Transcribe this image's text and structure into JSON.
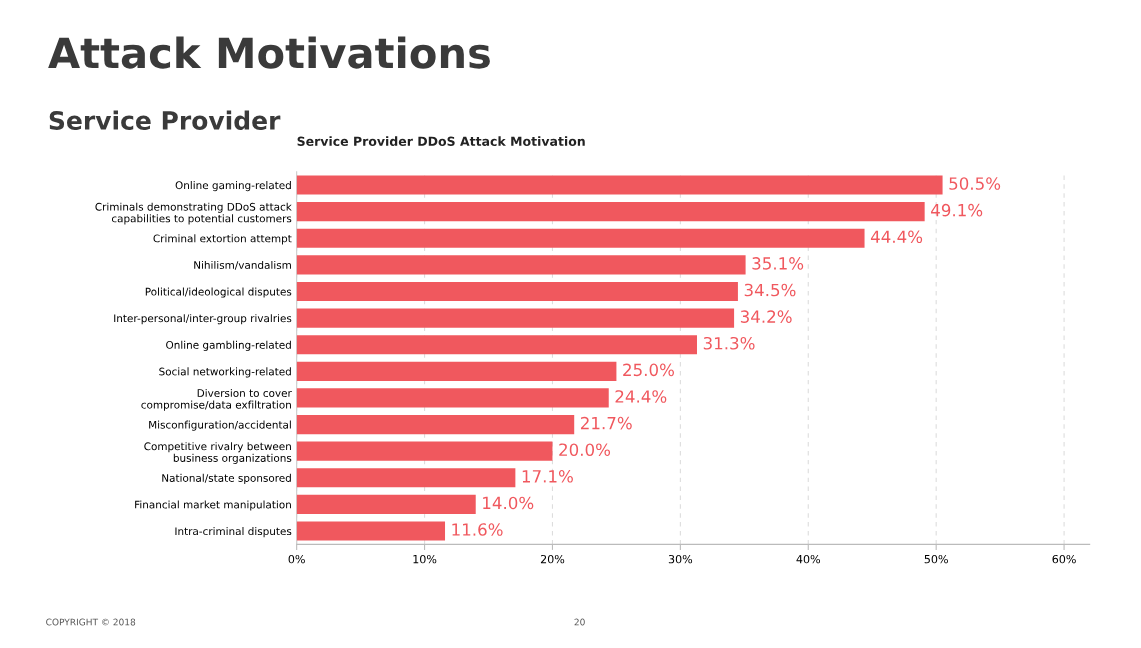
{
  "chart_data": {
    "type": "bar",
    "orientation": "horizontal",
    "title": "Attack Motivations",
    "subtitle": "Service Provider",
    "annotations": [
      "Service Provider DDoS Attack Motivation",
      "COPYRIGHT © 2018",
      "20"
    ],
    "categories": [
      "Online gaming-related",
      "Criminals demonstrating DDoS attack\ncapabilities to potential customers",
      "Criminal extortion attempt",
      "Nihilism/vandalism",
      "Political/ideological disputes",
      "Inter-personal/inter-group rivalries",
      "Online gambling-related",
      "Social networking-related",
      "Diversion to cover\ncompromise/data exfiltration",
      "Misconfiguration/accidental",
      "Competitive rivalry between\nbusiness organizations",
      "National/state sponsored",
      "Financial market manipulation",
      "Intra-criminal disputes"
    ],
    "values": [
      50.5,
      49.1,
      44.4,
      35.1,
      34.5,
      34.2,
      31.3,
      25.0,
      24.4,
      21.7,
      20.0,
      17.1,
      14.0,
      11.6
    ],
    "value_labels": [
      "50.5%",
      "49.1%",
      "44.4%",
      "35.1%",
      "34.5%",
      "34.2%",
      "31.3%",
      "25.0%",
      "24.4%",
      "21.7%",
      "20.0%",
      "17.1%",
      "14.0%",
      "11.6%"
    ],
    "color": "#f0585e",
    "xlim": [
      0,
      62
    ],
    "xticks": [
      {
        "value": 0,
        "label": "0%"
      },
      {
        "value": 10,
        "label": "10%"
      },
      {
        "value": 20,
        "label": "20%"
      },
      {
        "value": 30,
        "label": "30%"
      },
      {
        "value": 40,
        "label": "40%"
      },
      {
        "value": 50,
        "label": "50%"
      },
      {
        "value": 60,
        "label": "60%"
      }
    ],
    "grid": "x"
  }
}
